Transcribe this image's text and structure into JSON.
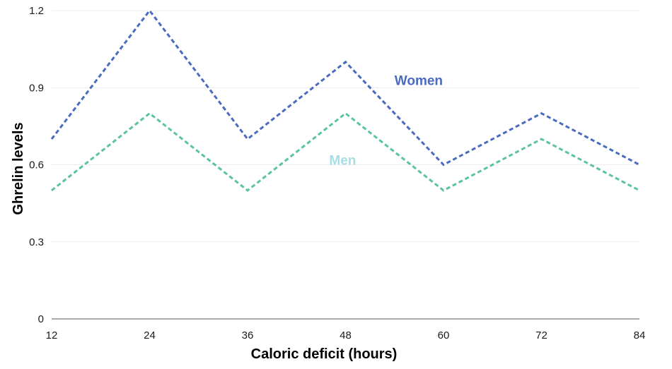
{
  "chart_data": {
    "type": "line",
    "x": [
      12,
      24,
      36,
      48,
      60,
      72,
      84
    ],
    "series": [
      {
        "name": "Women",
        "values": [
          0.7,
          1.2,
          0.7,
          1.0,
          0.6,
          0.8,
          0.6
        ],
        "color": "#4a6bbf",
        "line_style": "dashed"
      },
      {
        "name": "Men",
        "values": [
          0.5,
          0.8,
          0.5,
          0.8,
          0.5,
          0.7,
          0.5
        ],
        "color": "#5cc3a0",
        "label_color": "#a9dde6",
        "line_style": "dashed"
      }
    ],
    "xlabel": "Caloric deficit (hours)",
    "ylabel": "Ghrelin levels",
    "xticks": [
      "12",
      "24",
      "36",
      "48",
      "60",
      "72",
      "84"
    ],
    "yticks": [
      "0",
      "0.3",
      "0.6",
      "0.9",
      "1.2"
    ],
    "ytick_values": [
      0,
      0.3,
      0.6,
      0.9,
      1.2
    ],
    "xlim": [
      12,
      84
    ],
    "ylim": [
      0,
      1.2
    ],
    "grid": true,
    "legend": "inline labels"
  }
}
